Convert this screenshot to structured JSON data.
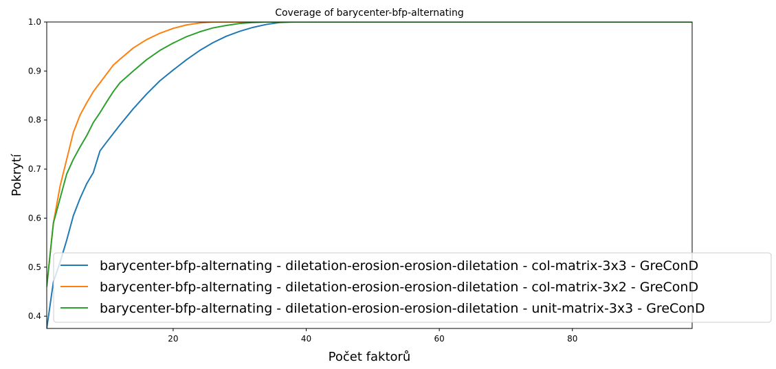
{
  "chart_data": {
    "type": "line",
    "title": "Coverage of barycenter-bfp-alternating",
    "xlabel": "Počet faktorů",
    "ylabel": "Pokrytí",
    "xlim": [
      1,
      98
    ],
    "ylim": [
      0.375,
      1.0
    ],
    "xticks": [
      20,
      40,
      60,
      80
    ],
    "xtick_labels": [
      "20",
      "40",
      "60",
      "80"
    ],
    "yticks": [
      0.4,
      0.5,
      0.6,
      0.7,
      0.8,
      0.9,
      1.0
    ],
    "ytick_labels": [
      "0.4",
      "0.5",
      "0.6",
      "0.7",
      "0.8",
      "0.9",
      "1.0"
    ],
    "grid": false,
    "legend_position": "bottom-right",
    "series": [
      {
        "name": "barycenter-bfp-alternating - diletation-erosion-erosion-diletation - col-matrix-3x3 - GreConD",
        "color": "#1f77b4",
        "x": [
          1,
          2,
          3,
          4,
          5,
          6,
          7,
          8,
          9,
          10,
          12,
          14,
          16,
          18,
          20,
          22,
          24,
          26,
          28,
          30,
          32,
          34,
          36,
          38,
          98
        ],
        "y": [
          0.375,
          0.47,
          0.51,
          0.555,
          0.605,
          0.64,
          0.67,
          0.693,
          0.737,
          0.755,
          0.79,
          0.823,
          0.853,
          0.88,
          0.902,
          0.923,
          0.942,
          0.958,
          0.971,
          0.981,
          0.989,
          0.995,
          0.999,
          1.0,
          1.0
        ]
      },
      {
        "name": "barycenter-bfp-alternating - diletation-erosion-erosion-diletation - col-matrix-3x2 - GreConD",
        "color": "#ff7f0e",
        "x": [
          1,
          2,
          3,
          4,
          5,
          6,
          7,
          8,
          9,
          10,
          11,
          12,
          14,
          16,
          18,
          20,
          22,
          24,
          26,
          28,
          98
        ],
        "y": [
          0.462,
          0.59,
          0.665,
          0.72,
          0.775,
          0.81,
          0.835,
          0.858,
          0.876,
          0.894,
          0.912,
          0.924,
          0.947,
          0.964,
          0.977,
          0.987,
          0.994,
          0.998,
          1.0,
          1.0,
          1.0
        ]
      },
      {
        "name": "barycenter-bfp-alternating - diletation-erosion-erosion-diletation - unit-matrix-3x3 - GreConD",
        "color": "#2ca02c",
        "x": [
          1,
          2,
          3,
          4,
          5,
          6,
          7,
          8,
          9,
          10,
          11,
          12,
          14,
          16,
          18,
          20,
          22,
          24,
          26,
          28,
          30,
          32,
          34,
          98
        ],
        "y": [
          0.46,
          0.59,
          0.64,
          0.69,
          0.72,
          0.745,
          0.768,
          0.795,
          0.815,
          0.837,
          0.858,
          0.876,
          0.9,
          0.923,
          0.942,
          0.957,
          0.97,
          0.98,
          0.988,
          0.993,
          0.997,
          0.999,
          1.0,
          1.0
        ]
      }
    ]
  }
}
